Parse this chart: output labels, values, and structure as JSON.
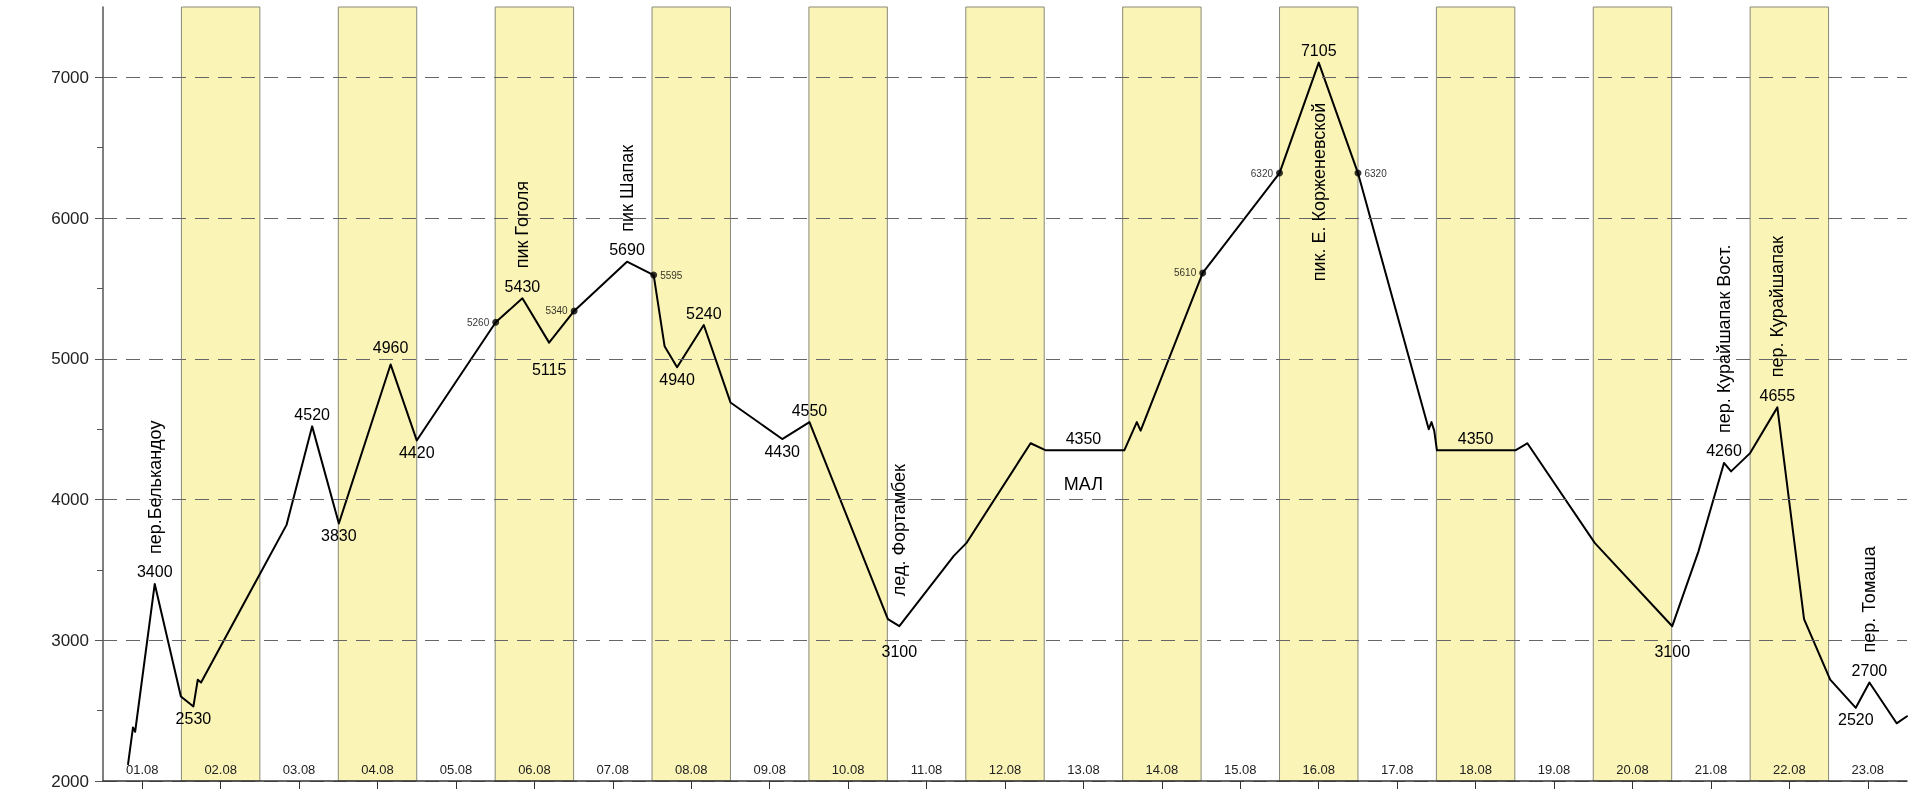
{
  "chart_data": {
    "type": "line",
    "xlim": [
      "--08-01",
      "--08-24"
    ],
    "ylim": [
      2000,
      7500
    ],
    "xticks": [
      {
        "value": "--08-01T12:00",
        "label": "01.08"
      },
      {
        "value": "--08-02T12:00",
        "label": "02.08"
      },
      {
        "value": "--08-03T12:00",
        "label": "03.08"
      },
      {
        "value": "--08-04T12:00",
        "label": "04.08"
      },
      {
        "value": "--08-05T12:00",
        "label": "05.08"
      },
      {
        "value": "--08-06T12:00",
        "label": "06.08"
      },
      {
        "value": "--08-07T12:00",
        "label": "07.08"
      },
      {
        "value": "--08-08T12:00",
        "label": "08.08"
      },
      {
        "value": "--08-09T12:00",
        "label": "09.08"
      },
      {
        "value": "--08-10T12:00",
        "label": "10.08"
      },
      {
        "value": "--08-11T12:00",
        "label": "11.08"
      },
      {
        "value": "--08-12T12:00",
        "label": "12.08"
      },
      {
        "value": "--08-13T12:00",
        "label": "13.08"
      },
      {
        "value": "--08-14T12:00",
        "label": "14.08"
      },
      {
        "value": "--08-15T12:00",
        "label": "15.08"
      },
      {
        "value": "--08-16T12:00",
        "label": "16.08"
      },
      {
        "value": "--08-17T12:00",
        "label": "17.08"
      },
      {
        "value": "--08-18T12:00",
        "label": "18.08"
      },
      {
        "value": "--08-19T12:00",
        "label": "19.08"
      },
      {
        "value": "--08-20T12:00",
        "label": "20.08"
      },
      {
        "value": "--08-21T12:00",
        "label": "21.08"
      },
      {
        "value": "--08-22T12:00",
        "label": "22.08"
      },
      {
        "value": "--08-23T12:00",
        "label": "23.08"
      }
    ],
    "yticks": [
      2000,
      {
        "value": 2500,
        "label": null
      },
      3000,
      {
        "value": 3500,
        "label": null
      },
      4000,
      {
        "value": 4500,
        "label": null
      },
      5000,
      {
        "value": 5500,
        "label": null
      },
      6000,
      {
        "value": 6500,
        "label": null
      },
      7000
    ],
    "grid": "y",
    "series": [
      {
        "color": "#000000",
        "marker": "none",
        "line_style": "solid",
        "x": [
          "--08-01T07:40",
          "--08-01T09:10",
          "--08-01T09:50",
          "--08-01T15:50",
          "--08-01T23:50",
          "--08-02T03:40",
          "--08-02T05:00",
          "--08-02T06:00",
          "--08-03T08:10",
          "--08-03T16:00",
          "--08-04T00:10",
          "--08-04T16:00",
          "--08-05T00:00",
          "--08-06T00:10",
          "--08-06T08:20",
          "--08-06T16:30",
          "--08-07T00:10",
          "--08-07T16:20",
          "--08-08T00:30",
          "--08-08T03:50",
          "--08-08T07:40",
          "--08-08T15:50",
          "--08-09T00:00",
          "--08-09T15:50",
          "--08-10T00:10",
          "--08-11T00:10",
          "--08-11T03:40",
          "--08-11T20:20",
          "--08-12T00:10",
          "--08-12T19:50",
          "--08-13T00:30",
          "--08-13T12:00",
          "--08-14T00:30",
          "--08-14T04:20",
          "--08-14T05:30",
          "--08-15T00:30",
          "--08-16T00:00",
          "--08-16T12:00",
          "--08-17T00:00",
          "--08-17T21:40",
          "--08-17T22:30",
          "--08-17T23:20",
          "--08-18T00:10",
          "--08-18T12:00",
          "--08-19T00:10",
          "--08-19T03:50",
          "--08-20T00:30",
          "--08-21T00:10",
          "--08-21T08:10",
          "--08-21T16:00",
          "--08-21T18:10",
          "--08-22T00:00",
          "--08-22T08:20",
          "--08-22T16:30",
          "--08-23T00:30",
          "--08-23T08:20",
          "--08-23T12:30",
          "--08-23T20:50",
          "--08-24T00:00"
        ],
        "values": [
          2120,
          2380,
          2350,
          3400,
          2600,
          2530,
          2720,
          2700,
          3820,
          4520,
          3830,
          4960,
          4420,
          5260,
          5430,
          5115,
          5340,
          5690,
          5595,
          5090,
          4940,
          5240,
          4690,
          4430,
          4550,
          3150,
          3100,
          3600,
          3690,
          4400,
          4350,
          4350,
          4350,
          4550,
          4490,
          5610,
          6320,
          7105,
          6320,
          4500,
          4550,
          4490,
          4350,
          4350,
          4350,
          4400,
          3690,
          3100,
          3630,
          4260,
          4200,
          4330,
          4655,
          3150,
          2720,
          2520,
          2700,
          2410,
          2460
        ],
        "value_labels": [
          null,
          null,
          null,
          "3400",
          null,
          "2530",
          null,
          null,
          null,
          "4520",
          "3830",
          "4960",
          "4420",
          null,
          "5430",
          "5115",
          null,
          "5690",
          null,
          null,
          "4940",
          "5240",
          null,
          "4430",
          "4550",
          null,
          "3100",
          null,
          null,
          null,
          null,
          "4350",
          null,
          null,
          null,
          null,
          null,
          "7105",
          null,
          null,
          null,
          null,
          null,
          "4350",
          null,
          null,
          null,
          "3100",
          null,
          "4260",
          null,
          null,
          "4655",
          null,
          null,
          "2520",
          "2700",
          null,
          null
        ]
      },
      {
        "type": "scatter",
        "color": "#000000",
        "marker": "circle",
        "data_labels": true,
        "x": [
          "--08-06T00:10",
          "--08-07T00:10",
          "--08-08T00:30",
          "--08-15T00:30",
          "--08-16T00:00",
          "--08-17T00:00"
        ],
        "values": [
          5260,
          5340,
          5595,
          5610,
          6320,
          6320
        ]
      }
    ],
    "bands": [
      {
        "axis": "x",
        "from": "--08-02",
        "to": "--08-03",
        "color": "#faf4b7"
      },
      {
        "axis": "x",
        "from": "--08-04",
        "to": "--08-05",
        "color": "#faf4b7"
      },
      {
        "axis": "x",
        "from": "--08-06",
        "to": "--08-07",
        "color": "#faf4b7"
      },
      {
        "axis": "x",
        "from": "--08-08",
        "to": "--08-09",
        "color": "#faf4b7"
      },
      {
        "axis": "x",
        "from": "--08-10",
        "to": "--08-11",
        "color": "#faf4b7"
      },
      {
        "axis": "x",
        "from": "--08-12",
        "to": "--08-13",
        "color": "#faf4b7"
      },
      {
        "axis": "x",
        "from": "--08-14",
        "to": "--08-15",
        "color": "#faf4b7"
      },
      {
        "axis": "x",
        "from": "--08-16",
        "to": "--08-17",
        "color": "#faf4b7"
      },
      {
        "axis": "x",
        "from": "--08-18",
        "to": "--08-19",
        "color": "#faf4b7"
      },
      {
        "axis": "x",
        "from": "--08-20",
        "to": "--08-21",
        "color": "#faf4b7"
      },
      {
        "axis": "x",
        "from": "--08-22",
        "to": "--08-23",
        "color": "#faf4b7"
      }
    ],
    "annotations": [
      {
        "text": "пер.Белькандоу",
        "x": "--08-01T15:50",
        "y": 3400
      },
      {
        "text": "пик Гоголя",
        "x": "--08-06T08:20",
        "y": 5430
      },
      {
        "text": "пик Шапак",
        "x": "--08-07T16:20",
        "y": 5690
      },
      {
        "text": "лед. Фортамбек",
        "x": "--08-11T03:40",
        "y": 3100
      },
      {
        "text": "МАЛ",
        "x": "--08-13T12:00",
        "y": 4350
      },
      {
        "text": "пик. Е. Корженевской",
        "x": "--08-16T12:00",
        "y": 7105
      },
      {
        "text": "пер. Курайшапак Вост.",
        "x": "--08-21T16:00",
        "y": 4260
      },
      {
        "text": "пер. Курайшапак",
        "x": "--08-22T08:20",
        "y": 4655
      },
      {
        "text": "пер. Томаша",
        "x": "--08-23T12:30",
        "y": 2700
      }
    ]
  }
}
